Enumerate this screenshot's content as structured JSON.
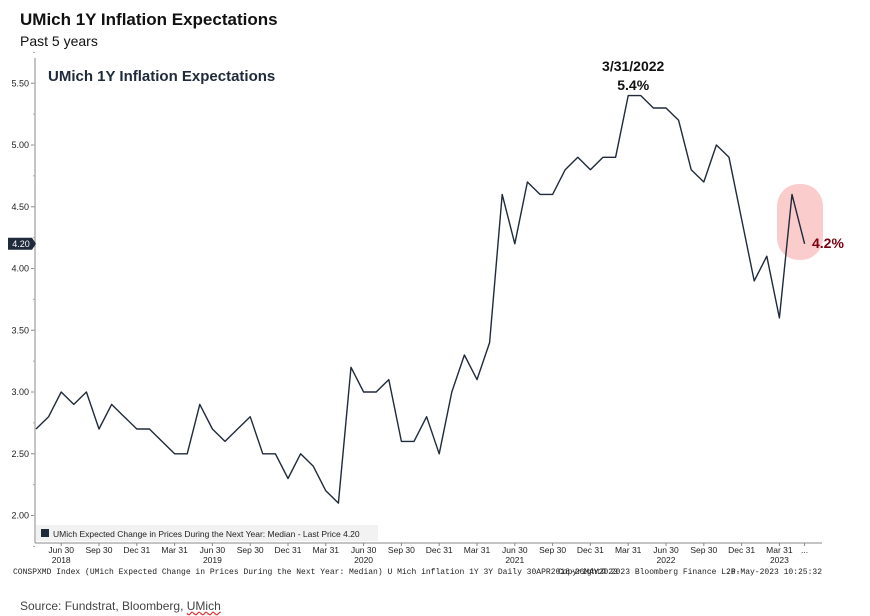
{
  "header": {
    "title": "UMich 1Y Inflation Expectations",
    "subtitle": "Past 5 years"
  },
  "footer": {
    "source_prefix": "Source: Fundstrat, Bloomberg, ",
    "source_last": "UMich",
    "meta_left": "CONSPXMD Index (UMich Expected Change in Prices During the Next Year: Median) U Mich inflation 1Y 3Y  Daily 30APR2018-26MAY2023",
    "meta_mid": "Copyright© 2023 Bloomberg Finance L.P.",
    "meta_right": "26-May-2023 10:25:32"
  },
  "colors": {
    "line": "#1f2a3a",
    "highlight": "#f5a3a3",
    "accent_text": "#7a0010",
    "last_price_box": "#1f2a3a"
  },
  "chart_data": {
    "type": "line",
    "title": "UMich 1Y Inflation Expectations",
    "ylim": [
      1.75,
      5.75
    ],
    "y_ticks": [
      "2.00",
      "2.50",
      "3.00",
      "3.50",
      "4.00",
      "4.50",
      "5.00",
      "5.50"
    ],
    "x_tick_labels": [
      "Jun 30",
      "Sep 30",
      "Dec 31",
      "Mar 31",
      "Jun 30",
      "Sep 30",
      "Dec 31",
      "Mar 31",
      "Jun 30",
      "Sep 30",
      "Dec 31",
      "Mar 31",
      "Jun 30",
      "Sep 30",
      "Dec 31",
      "Mar 31",
      "Jun 30",
      "Sep 30",
      "Dec 31",
      "Mar 31",
      "..."
    ],
    "x_tick_month_index": [
      2,
      5,
      8,
      11,
      14,
      17,
      20,
      23,
      26,
      29,
      32,
      35,
      38,
      41,
      44,
      47,
      50,
      53,
      56,
      59,
      61
    ],
    "year_labels": [
      {
        "label": "2018",
        "month_index": 2
      },
      {
        "label": "2019",
        "month_index": 14
      },
      {
        "label": "2020",
        "month_index": 26
      },
      {
        "label": "2021",
        "month_index": 38
      },
      {
        "label": "2022",
        "month_index": 50
      },
      {
        "label": "2023",
        "month_index": 59
      }
    ],
    "series": [
      {
        "name": "UMich Expected Change in Prices During the Next Year: Median",
        "values": [
          2.7,
          2.8,
          3.0,
          2.9,
          3.0,
          2.7,
          2.9,
          2.8,
          2.7,
          2.7,
          2.6,
          2.5,
          2.5,
          2.9,
          2.7,
          2.6,
          2.7,
          2.8,
          2.5,
          2.5,
          2.3,
          2.5,
          2.4,
          2.2,
          2.1,
          3.2,
          3.0,
          3.0,
          3.1,
          2.6,
          2.6,
          2.8,
          2.5,
          3.0,
          3.3,
          3.1,
          3.4,
          4.6,
          4.2,
          4.7,
          4.6,
          4.6,
          4.8,
          4.9,
          4.8,
          4.9,
          4.9,
          5.4,
          5.4,
          5.3,
          5.3,
          5.2,
          4.8,
          4.7,
          5.0,
          4.9,
          4.4,
          3.9,
          4.1,
          3.6,
          4.6,
          4.2
        ]
      }
    ],
    "legend_text": "UMich Expected Change in Prices During the Next Year: Median - Last Price 4.20",
    "legend_position": "bottom-left",
    "last_price_label": "4.20",
    "annotations": {
      "peak_date": "3/31/2022",
      "peak_value": "5.4%",
      "peak_month_index": 47,
      "latest_value": "4.2%"
    },
    "grid": false
  }
}
